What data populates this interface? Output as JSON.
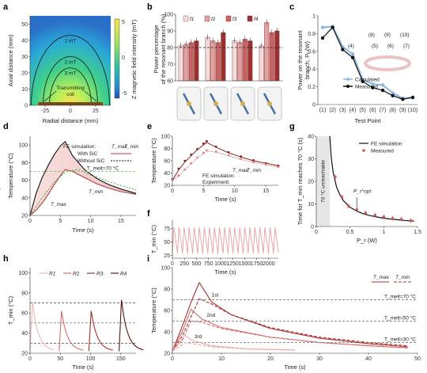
{
  "panels": [
    "a",
    "b",
    "c",
    "d",
    "e",
    "f",
    "g",
    "h",
    "i"
  ],
  "chart_data": [
    {
      "id": "a",
      "type": "heatmap",
      "xlabel": "Radial distance (mm)",
      "ylabel": "Axial distance (mm)",
      "colorbar_label": "Z magnetic field intensity (mT)",
      "xlim": [
        -40,
        40
      ],
      "ylim": [
        0,
        55
      ],
      "xticks": [
        -25,
        0,
        25
      ],
      "yticks": [
        0,
        10,
        20,
        30,
        40,
        50
      ],
      "colorbar_ticks": [
        5,
        0,
        -5
      ],
      "contours": [
        {
          "label": "1 mT",
          "height": 43
        },
        {
          "label": "2 mT",
          "height": 30
        },
        {
          "label": "3 mT",
          "height": 23
        }
      ],
      "annotation": "Transmitting coil"
    },
    {
      "id": "b",
      "type": "bar",
      "ylabel": "Power percentage of the resonant branch (%)",
      "ylim": [
        60,
        100
      ],
      "yticks": [
        60,
        70,
        80,
        90,
        100
      ],
      "reference_line": 80,
      "series": [
        {
          "name": "f1",
          "values": [
            81,
            86,
            84,
            81
          ]
        },
        {
          "name": "f2",
          "values": [
            82,
            84,
            83,
            95
          ]
        },
        {
          "name": "f3",
          "values": [
            83,
            83,
            85,
            89
          ]
        },
        {
          "name": "f4",
          "values": [
            84,
            89,
            84,
            90
          ]
        }
      ],
      "colors": [
        "#f4dcdc",
        "#e3a2a2",
        "#c96363",
        "#9c2f2f"
      ]
    },
    {
      "id": "c",
      "type": "line",
      "xlabel": "Test Point",
      "ylabel": "Power on the resonant branch, P_r (W)",
      "ylim": [
        0,
        1.0
      ],
      "yticks": [
        0,
        0.2,
        0.4,
        0.6,
        0.8,
        1.0
      ],
      "categories": [
        "(1)",
        "(2)",
        "(3)",
        "(4)",
        "(5)",
        "(6)",
        "(7)",
        "(8)",
        "(9)",
        "(10)"
      ],
      "series": [
        {
          "name": "Calculated",
          "values": [
            0.87,
            0.88,
            0.65,
            0.57,
            0.28,
            0.23,
            0.22,
            0.13,
            0.07,
            0.08
          ]
        },
        {
          "name": "Measured",
          "values": [
            0.75,
            0.87,
            0.62,
            0.53,
            0.26,
            0.19,
            0.16,
            0.1,
            0.06,
            0.08
          ]
        }
      ],
      "inset_labels": [
        "(8)",
        "(9)",
        "(10)",
        "(4)",
        "(5)",
        "(6)",
        "(7)"
      ]
    },
    {
      "id": "d",
      "type": "line",
      "xlabel": "Time (s)",
      "ylabel": "Temperature (°C)",
      "xlim": [
        0,
        17.5
      ],
      "ylim": [
        20,
        110
      ],
      "xticks": [
        0,
        5,
        10,
        15
      ],
      "yticks": [
        20,
        40,
        60,
        80,
        100
      ],
      "threshold_label": "T_melt=70 °C",
      "threshold": 70,
      "legend": [
        "FE simulation:",
        "T_max",
        "T_min",
        "With SiC",
        "Without SiC"
      ],
      "series": [
        {
          "name": "T_max",
          "x": [
            0,
            1,
            2,
            3,
            4,
            5,
            5.8,
            7,
            9,
            11,
            13,
            15,
            17.5
          ],
          "values": [
            20,
            45,
            63,
            77,
            89,
            99,
            104,
            88,
            72,
            62,
            55,
            50,
            45
          ]
        },
        {
          "name": "T_min",
          "x": [
            0,
            1,
            2,
            3,
            4,
            5,
            5.8,
            7,
            9,
            11,
            13,
            15,
            17.5
          ],
          "values": [
            20,
            26,
            34,
            44,
            55,
            65,
            72,
            70,
            63,
            56,
            51,
            47,
            44
          ]
        },
        {
          "name": "Without SiC",
          "x": [
            0,
            2,
            4,
            6,
            8,
            10,
            12,
            14,
            16,
            17.5
          ],
          "values": [
            20,
            40,
            58,
            70,
            72,
            66,
            61,
            56,
            52,
            49
          ]
        }
      ],
      "labels": [
        "T_max",
        "T_min"
      ]
    },
    {
      "id": "e",
      "type": "line",
      "xlabel": "Time (s)",
      "ylabel": "Temperature (°C)",
      "xlim": [
        0,
        17
      ],
      "ylim": [
        20,
        100
      ],
      "xticks": [
        0,
        5,
        10,
        15
      ],
      "yticks": [
        20,
        40,
        60,
        80,
        100
      ],
      "legend": [
        "T_max",
        "T_min",
        "FE simulation:",
        "Experiment:"
      ],
      "series": [
        {
          "name": "T_max simulation",
          "x": [
            0,
            1,
            2,
            3,
            4,
            5,
            5.5,
            7,
            9,
            11,
            13,
            15,
            17
          ],
          "values": [
            28,
            45,
            58,
            68,
            78,
            86,
            90,
            82,
            73,
            66,
            60,
            56,
            52
          ]
        },
        {
          "name": "T_min simulation",
          "x": [
            0,
            1,
            2,
            3,
            4,
            5,
            5.5,
            7,
            9,
            11,
            13,
            15,
            17
          ],
          "values": [
            28,
            35,
            45,
            55,
            64,
            72,
            76,
            74,
            68,
            62,
            57,
            53,
            50
          ]
        },
        {
          "name": "T_max experiment",
          "x": [
            0,
            1,
            2,
            3,
            4,
            5,
            5.5,
            7,
            9,
            11,
            13,
            15,
            17
          ],
          "values": [
            30,
            47,
            60,
            70,
            79,
            88,
            92,
            83,
            74,
            67,
            61,
            56,
            52
          ]
        },
        {
          "name": "T_min experiment",
          "x": [
            0,
            1,
            2,
            3,
            4,
            5,
            5.5,
            7,
            9,
            11,
            13,
            15,
            17
          ],
          "values": [
            29,
            36,
            46,
            56,
            65,
            73,
            77,
            75,
            69,
            63,
            58,
            54,
            50
          ]
        }
      ]
    },
    {
      "id": "f",
      "type": "line",
      "xlabel": "Time (s)",
      "ylabel": "T_min (°C)",
      "xlim": [
        0,
        2200
      ],
      "ylim": [
        20,
        90
      ],
      "xticks": [
        0,
        250,
        500,
        750,
        1000,
        1250,
        1500,
        1750,
        2000
      ],
      "yticks": [
        25,
        50,
        75
      ],
      "cycles": 21,
      "peak": 77,
      "base": 28,
      "period": 105
    },
    {
      "id": "g",
      "type": "line",
      "xlabel": "P_r (W)",
      "ylabel": "Time for T_min reaches 70 °C (s)",
      "xlim": [
        0,
        1.5
      ],
      "ylim": [
        0,
        40
      ],
      "xticks": [
        0,
        0.5,
        1.0,
        1.5
      ],
      "yticks": [
        0,
        10,
        20,
        30,
        40
      ],
      "legend": [
        "FE simulation",
        "Measured"
      ],
      "shaded_label": "70 °C unreachable",
      "shaded_xmax": 0.2,
      "annotation": "P_r^opt",
      "series": [
        {
          "name": "FE simulation",
          "x": [
            0.2,
            0.22,
            0.25,
            0.3,
            0.35,
            0.4,
            0.5,
            0.6,
            0.7,
            0.8,
            0.9,
            1.0,
            1.1,
            1.2,
            1.3,
            1.4,
            1.45
          ],
          "values": [
            40,
            31,
            24,
            17.5,
            14,
            11.5,
            8.5,
            6.8,
            5.6,
            4.8,
            4.2,
            3.7,
            3.3,
            3.0,
            2.7,
            2.5,
            2.4
          ]
        },
        {
          "name": "Measured",
          "x": [
            0.28,
            0.38,
            0.48,
            0.6,
            0.73,
            0.87,
            1.0,
            1.13,
            1.26,
            1.4
          ],
          "values": [
            22,
            13,
            9,
            7.5,
            6,
            5,
            4.3,
            3.6,
            3.2,
            2.6
          ]
        }
      ]
    },
    {
      "id": "h",
      "type": "line",
      "xlabel": "Time (s)",
      "ylabel": "T_min (°C)",
      "xlim": [
        0,
        175
      ],
      "ylim": [
        20,
        105
      ],
      "xticks": [
        0,
        50,
        100,
        150
      ],
      "yticks": [
        20,
        40,
        60,
        80,
        100
      ],
      "thresholds": [
        70,
        50,
        30
      ],
      "legend": [
        "R1",
        "R2",
        "R3",
        "R4"
      ],
      "series": [
        {
          "name": "R1",
          "start": 0,
          "peak": 70,
          "colour": "#f2b8b8"
        },
        {
          "name": "R2",
          "start": 48,
          "peak": 62,
          "colour": "#d86a6a"
        },
        {
          "name": "R3",
          "start": 97,
          "peak": 62,
          "colour": "#a83030"
        },
        {
          "name": "R4",
          "start": 147,
          "peak": 73,
          "colour": "#5a1414"
        }
      ]
    },
    {
      "id": "i",
      "type": "line",
      "xlabel": "Time (s)",
      "ylabel": "Temperature (°C)",
      "xlim": [
        0,
        50
      ],
      "ylim": [
        20,
        100
      ],
      "xticks": [
        0,
        10,
        20,
        30,
        40,
        50
      ],
      "yticks": [
        20,
        40,
        60,
        80,
        100
      ],
      "legend": [
        "T_max",
        "T_min"
      ],
      "thresholds": [
        {
          "label": "T_melt=70 °C",
          "value": 70
        },
        {
          "label": "T_melt=50 °C",
          "value": 50
        },
        {
          "label": "T_melt=30 °C",
          "value": 30
        }
      ],
      "annotations": [
        "1st",
        "2nd",
        "3rd"
      ],
      "series": [
        {
          "name": "1st T_max",
          "x": [
            0,
            2,
            4,
            5.5,
            8,
            12,
            20,
            30,
            40,
            48
          ],
          "values": [
            22,
            45,
            70,
            86,
            68,
            56,
            43,
            34,
            29,
            26
          ]
        },
        {
          "name": "1st T_min",
          "x": [
            0,
            2,
            4,
            5.5,
            8,
            12,
            20,
            30,
            40,
            48
          ],
          "values": [
            22,
            36,
            56,
            71,
            66,
            56,
            44,
            35,
            30,
            27
          ]
        },
        {
          "name": "2nd T_max",
          "x": [
            0,
            2,
            3.8,
            6,
            10,
            20,
            30,
            40,
            48
          ],
          "values": [
            22,
            40,
            61,
            52,
            44,
            35,
            30,
            27,
            25
          ]
        },
        {
          "name": "2nd T_min",
          "x": [
            0,
            2,
            3.8,
            6,
            10,
            20,
            30,
            40,
            48
          ],
          "values": [
            22,
            32,
            50,
            49,
            43,
            35,
            30,
            27,
            25
          ]
        },
        {
          "name": "3rd T_max",
          "x": [
            0,
            1.5,
            2.5,
            4,
            8,
            15,
            25
          ],
          "values": [
            22,
            30,
            37,
            32,
            27,
            24,
            23
          ]
        },
        {
          "name": "3rd T_min",
          "x": [
            0,
            1.5,
            2.5,
            4,
            8,
            15,
            25
          ],
          "values": [
            22,
            26,
            30,
            29,
            26,
            24,
            23
          ]
        }
      ]
    }
  ]
}
